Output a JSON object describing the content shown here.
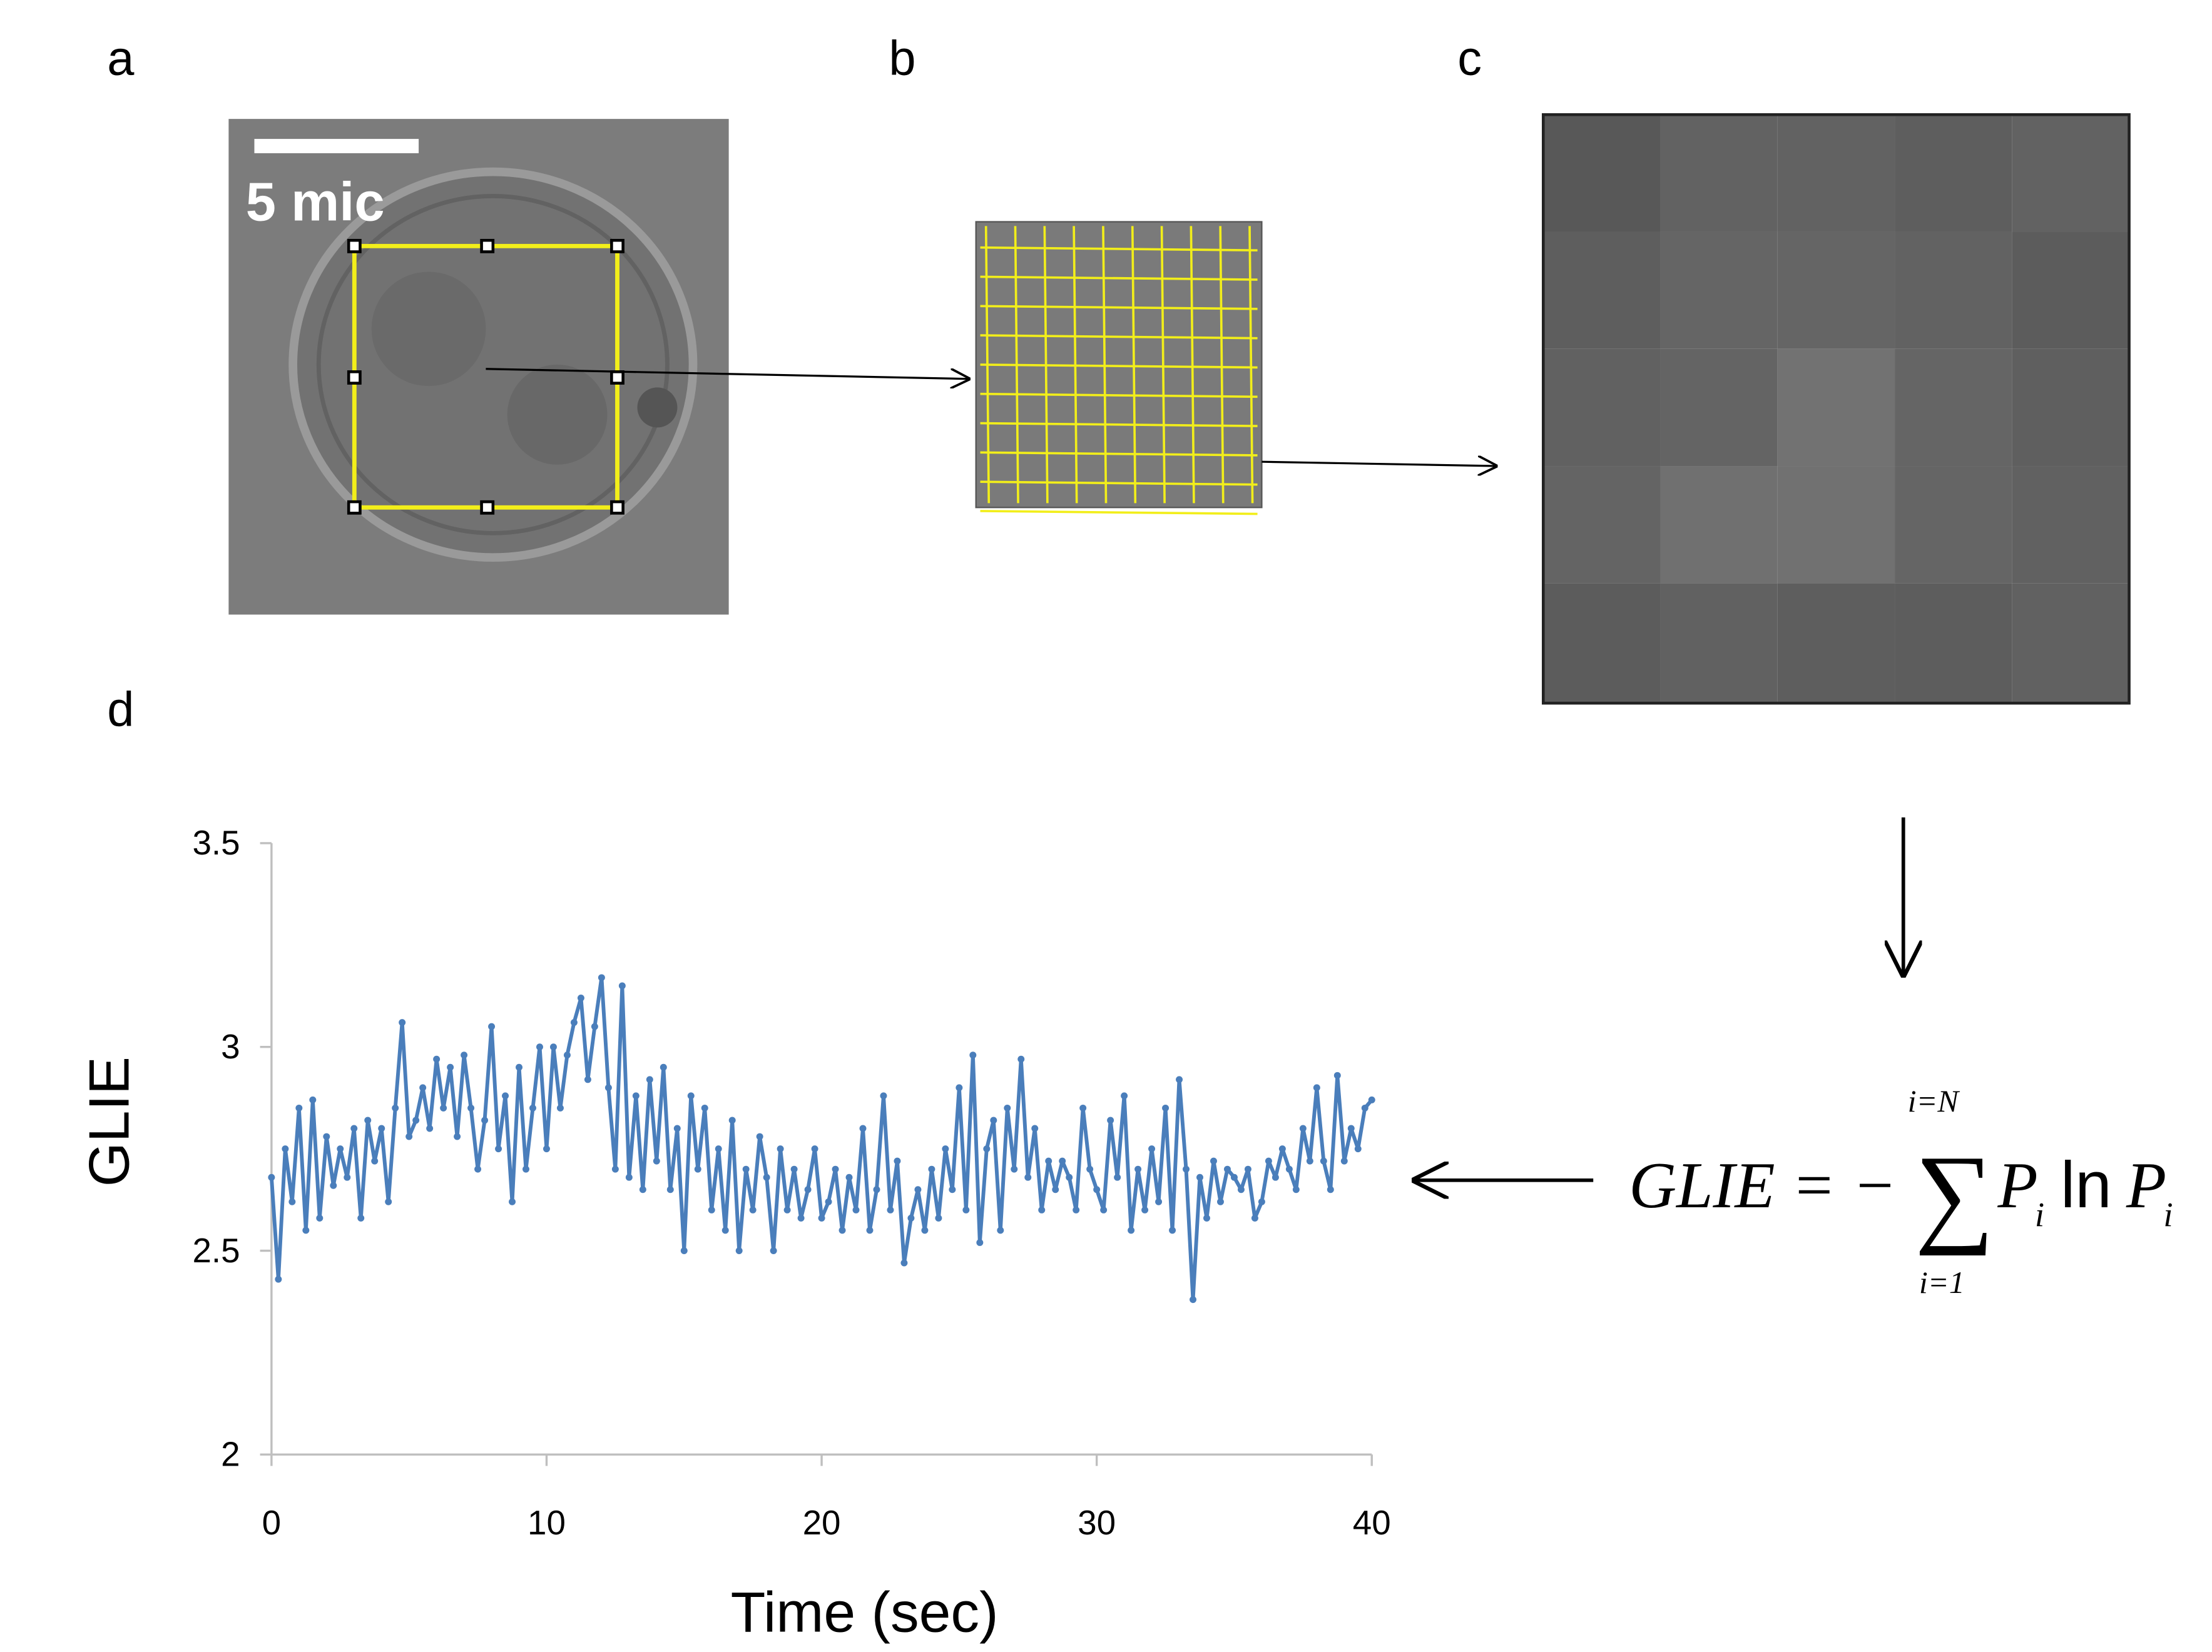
{
  "panel_labels": {
    "a": "a",
    "b": "b",
    "c": "c",
    "d": "d"
  },
  "scale_bar_label": "5 mic",
  "formula": {
    "lhs": "GLIE = −",
    "sum": "∑",
    "upper": "i=N",
    "lower": "i=1",
    "term1": "P",
    "sub1": "i",
    "op": "ln",
    "term2": "P",
    "sub2": "i"
  },
  "chart_data": {
    "type": "line",
    "xlabel": "Time (sec)",
    "ylabel": "GLIE",
    "xlim": [
      0,
      40
    ],
    "xticks": [
      0,
      10,
      20,
      30,
      40
    ],
    "ylim": [
      2,
      3.5
    ],
    "yticks": [
      2,
      2.5,
      3,
      3.5
    ],
    "grid": false,
    "x": [
      0,
      0.25,
      0.5,
      0.75,
      1,
      1.25,
      1.5,
      1.75,
      2,
      2.25,
      2.5,
      2.75,
      3,
      3.25,
      3.5,
      3.75,
      4,
      4.25,
      4.5,
      4.75,
      5,
      5.25,
      5.5,
      5.75,
      6,
      6.25,
      6.5,
      6.75,
      7,
      7.25,
      7.5,
      7.75,
      8,
      8.25,
      8.5,
      8.75,
      9,
      9.25,
      9.5,
      9.75,
      10,
      10.25,
      10.5,
      10.75,
      11,
      11.25,
      11.5,
      11.75,
      12,
      12.25,
      12.5,
      12.75,
      13,
      13.25,
      13.5,
      13.75,
      14,
      14.25,
      14.5,
      14.75,
      15,
      15.25,
      15.5,
      15.75,
      16,
      16.25,
      16.5,
      16.75,
      17,
      17.25,
      17.5,
      17.75,
      18,
      18.25,
      18.5,
      18.75,
      19,
      19.25,
      19.5,
      19.75,
      20,
      20.25,
      20.5,
      20.75,
      21,
      21.25,
      21.5,
      21.75,
      22,
      22.25,
      22.5,
      22.75,
      23,
      23.25,
      23.5,
      23.75,
      24,
      24.25,
      24.5,
      24.75,
      25,
      25.25,
      25.5,
      25.75,
      26,
      26.25,
      26.5,
      26.75,
      27,
      27.25,
      27.5,
      27.75,
      28,
      28.25,
      28.5,
      28.75,
      29,
      29.25,
      29.5,
      29.75,
      30,
      30.25,
      30.5,
      30.75,
      31,
      31.25,
      31.5,
      31.75,
      32,
      32.25,
      32.5,
      32.75,
      33,
      33.25,
      33.5,
      33.75,
      34,
      34.25,
      34.5,
      34.75,
      35,
      35.25,
      35.5,
      35.75,
      36,
      36.25,
      36.5,
      36.75,
      37,
      37.25,
      37.5,
      37.75,
      38,
      38.25,
      38.5,
      38.75,
      39,
      39.25,
      39.5,
      39.75,
      40
    ],
    "series": [
      {
        "name": "GLIE",
        "color": "#4a7ebb",
        "values": [
          2.68,
          2.43,
          2.75,
          2.62,
          2.85,
          2.55,
          2.87,
          2.58,
          2.78,
          2.66,
          2.75,
          2.68,
          2.8,
          2.58,
          2.82,
          2.72,
          2.8,
          2.62,
          2.85,
          3.06,
          2.78,
          2.82,
          2.9,
          2.8,
          2.97,
          2.85,
          2.95,
          2.78,
          2.98,
          2.85,
          2.7,
          2.82,
          3.05,
          2.75,
          2.88,
          2.62,
          2.95,
          2.7,
          2.85,
          3.0,
          2.75,
          3.0,
          2.85,
          2.98,
          3.06,
          3.12,
          2.92,
          3.05,
          3.17,
          2.9,
          2.7,
          3.15,
          2.68,
          2.88,
          2.65,
          2.92,
          2.72,
          2.95,
          2.65,
          2.8,
          2.5,
          2.88,
          2.7,
          2.85,
          2.6,
          2.75,
          2.55,
          2.82,
          2.5,
          2.7,
          2.6,
          2.78,
          2.68,
          2.5,
          2.75,
          2.6,
          2.7,
          2.58,
          2.65,
          2.75,
          2.58,
          2.62,
          2.7,
          2.55,
          2.68,
          2.6,
          2.8,
          2.55,
          2.65,
          2.88,
          2.6,
          2.72,
          2.47,
          2.58,
          2.65,
          2.55,
          2.7,
          2.58,
          2.75,
          2.65,
          2.9,
          2.6,
          2.98,
          2.52,
          2.75,
          2.82,
          2.55,
          2.85,
          2.7,
          2.97,
          2.68,
          2.8,
          2.6,
          2.72,
          2.65,
          2.72,
          2.68,
          2.6,
          2.85,
          2.7,
          2.65,
          2.6,
          2.82,
          2.68,
          2.88,
          2.55,
          2.7,
          2.6,
          2.75,
          2.62,
          2.85,
          2.55,
          2.92,
          2.7,
          2.38,
          2.68,
          2.58,
          2.72,
          2.62,
          2.7,
          2.68,
          2.65,
          2.7,
          2.58,
          2.62,
          2.72,
          2.68,
          2.75,
          2.7,
          2.65,
          2.8,
          2.72,
          2.9,
          2.72,
          2.65,
          2.93,
          2.72,
          2.8,
          2.75,
          2.85,
          2.87
        ]
      }
    ]
  }
}
